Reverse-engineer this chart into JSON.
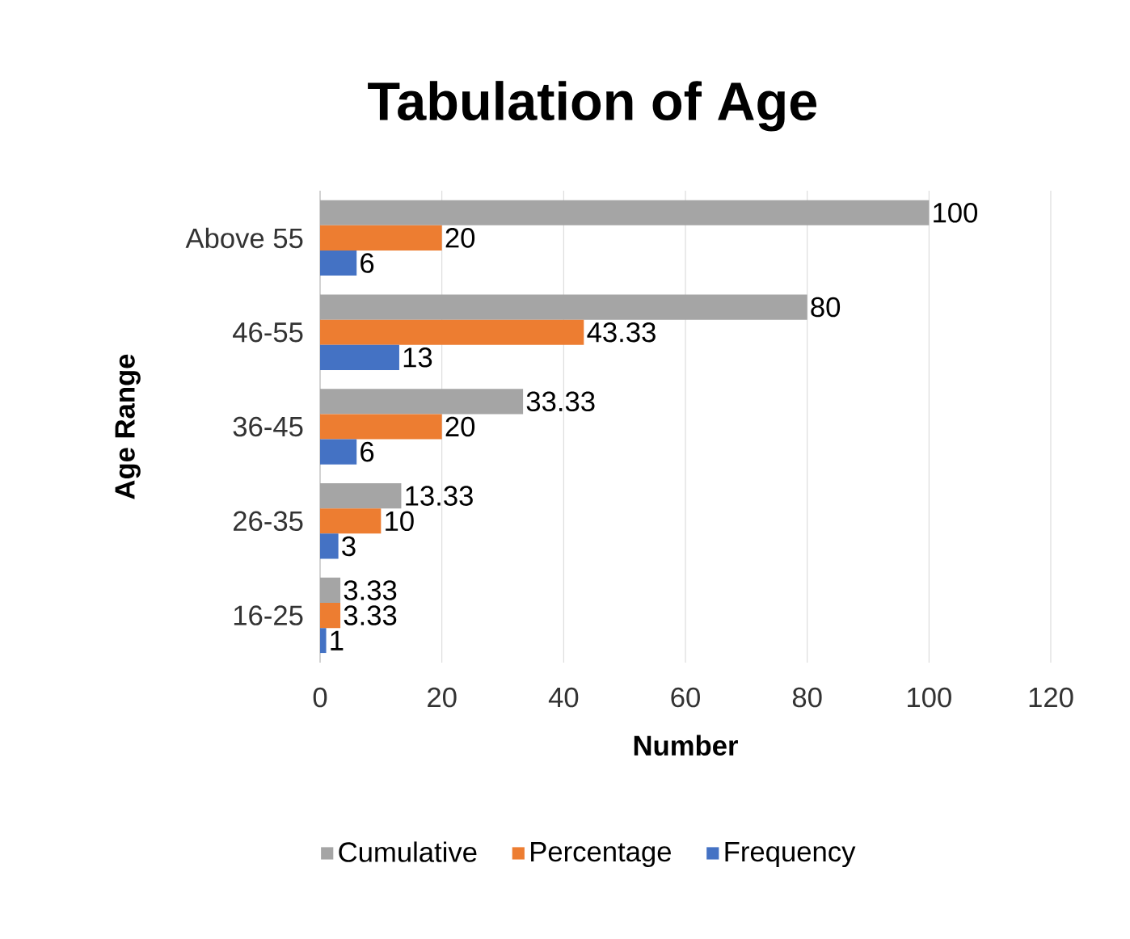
{
  "chart_data": {
    "type": "bar",
    "orientation": "horizontal",
    "title": "Tabulation of Age",
    "xlabel": "Number",
    "ylabel": "Age Range",
    "categories": [
      "Above 55",
      "46-55",
      "36-45",
      "26-35",
      "16-25"
    ],
    "series": [
      {
        "name": "Cumulative",
        "color": "#a5a5a5",
        "values": [
          100,
          80,
          33.33,
          13.33,
          3.33
        ]
      },
      {
        "name": "Percentage",
        "color": "#ed7d31",
        "values": [
          20,
          43.33,
          20,
          10,
          3.33
        ]
      },
      {
        "name": "Frequency",
        "color": "#4472c4",
        "values": [
          6,
          13,
          6,
          3,
          1
        ]
      }
    ],
    "xlim": [
      0,
      120
    ],
    "xticks": [
      0,
      20,
      40,
      60,
      80,
      100,
      120
    ],
    "grid": "x",
    "legend": "bottom",
    "data_labels": true
  }
}
